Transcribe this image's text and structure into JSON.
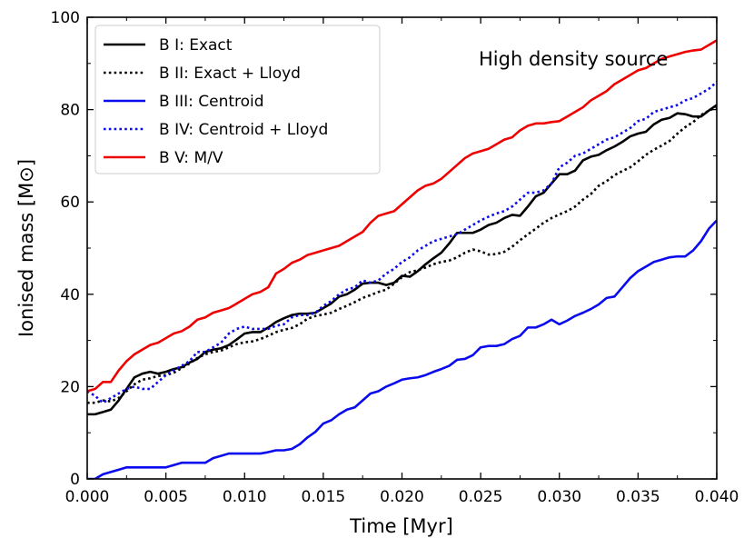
{
  "chart_data": {
    "type": "line",
    "title": "",
    "annotation": "High density source",
    "xlabel": "Time [Myr]",
    "ylabel": "Ionised mass [M⊙]",
    "xlim": [
      0.0,
      0.04
    ],
    "ylim": [
      0,
      100
    ],
    "x_ticks": [
      0.0,
      0.005,
      0.01,
      0.015,
      0.02,
      0.025,
      0.03,
      0.035,
      0.04
    ],
    "x_tick_labels": [
      "0.000",
      "0.005",
      "0.010",
      "0.015",
      "0.020",
      "0.025",
      "0.030",
      "0.035",
      "0.040"
    ],
    "y_ticks": [
      0,
      20,
      40,
      60,
      80,
      100
    ],
    "y_tick_labels": [
      "0",
      "20",
      "40",
      "60",
      "80",
      "100"
    ],
    "legend_position": "top-left",
    "grid": false,
    "series": [
      {
        "name": "B I: Exact",
        "color": "#000000",
        "style": "solid",
        "x": [
          0.0,
          0.0005,
          0.001,
          0.0015,
          0.002,
          0.0025,
          0.003,
          0.0035,
          0.004,
          0.0045,
          0.005,
          0.0055,
          0.006,
          0.0065,
          0.007,
          0.0075,
          0.008,
          0.0085,
          0.009,
          0.0095,
          0.01,
          0.0105,
          0.011,
          0.0115,
          0.012,
          0.0125,
          0.013,
          0.0135,
          0.014,
          0.0145,
          0.015,
          0.0155,
          0.016,
          0.0165,
          0.017,
          0.0175,
          0.018,
          0.0185,
          0.019,
          0.0195,
          0.02,
          0.0205,
          0.021,
          0.0215,
          0.022,
          0.0225,
          0.023,
          0.0235,
          0.024,
          0.0245,
          0.025,
          0.0255,
          0.026,
          0.0265,
          0.027,
          0.0275,
          0.028,
          0.0285,
          0.029,
          0.0295,
          0.03,
          0.0305,
          0.031,
          0.0315,
          0.032,
          0.0325,
          0.033,
          0.0335,
          0.034,
          0.0345,
          0.035,
          0.0355,
          0.036,
          0.0365,
          0.037,
          0.0375,
          0.038,
          0.0385,
          0.039,
          0.0395,
          0.04
        ],
        "values": [
          14.0,
          14.0,
          14.5,
          15.0,
          17.0,
          19.5,
          22.0,
          22.8,
          23.2,
          22.8,
          23.2,
          23.8,
          24.2,
          25.2,
          26.0,
          27.5,
          28.0,
          28.3,
          29.0,
          30.2,
          31.5,
          31.8,
          31.8,
          32.8,
          34.0,
          34.8,
          35.5,
          35.8,
          35.8,
          36.0,
          37.0,
          38.0,
          39.5,
          40.0,
          41.0,
          42.3,
          42.5,
          42.5,
          42.0,
          42.5,
          44.0,
          43.8,
          45.0,
          46.5,
          47.8,
          49.0,
          51.0,
          53.3,
          53.3,
          53.3,
          54.0,
          55.0,
          55.5,
          56.5,
          57.2,
          57.0,
          59.0,
          61.2,
          62.0,
          64.0,
          66.0,
          66.0,
          66.8,
          69.0,
          69.8,
          70.2,
          71.2,
          72.0,
          73.0,
          74.2,
          74.8,
          75.2,
          76.8,
          77.8,
          78.2,
          79.2,
          79.0,
          78.5,
          78.5,
          79.8,
          81.0
        ]
      },
      {
        "name": "B II: Exact + Lloyd",
        "color": "#000000",
        "style": "dotted",
        "x": [
          0.0,
          0.0005,
          0.001,
          0.0015,
          0.002,
          0.0025,
          0.003,
          0.0035,
          0.004,
          0.0045,
          0.005,
          0.0055,
          0.006,
          0.0065,
          0.007,
          0.0075,
          0.008,
          0.0085,
          0.009,
          0.0095,
          0.01,
          0.0105,
          0.011,
          0.0115,
          0.012,
          0.0125,
          0.013,
          0.0135,
          0.014,
          0.0145,
          0.015,
          0.0155,
          0.016,
          0.0165,
          0.017,
          0.0175,
          0.018,
          0.0185,
          0.019,
          0.0195,
          0.02,
          0.0205,
          0.021,
          0.0215,
          0.022,
          0.0225,
          0.023,
          0.0235,
          0.024,
          0.0245,
          0.025,
          0.0255,
          0.026,
          0.0265,
          0.027,
          0.0275,
          0.028,
          0.0285,
          0.029,
          0.0295,
          0.03,
          0.0305,
          0.031,
          0.0315,
          0.032,
          0.0325,
          0.033,
          0.0335,
          0.034,
          0.0345,
          0.035,
          0.0355,
          0.036,
          0.0365,
          0.037,
          0.0375,
          0.038,
          0.0385,
          0.039,
          0.0395,
          0.04
        ],
        "values": [
          16.5,
          16.5,
          17.0,
          16.8,
          17.5,
          19.0,
          20.5,
          21.5,
          21.8,
          22.3,
          22.5,
          23.0,
          24.0,
          25.0,
          26.2,
          27.0,
          27.5,
          27.8,
          28.5,
          29.2,
          29.6,
          29.8,
          30.3,
          31.0,
          31.8,
          32.3,
          32.7,
          33.5,
          34.7,
          35.3,
          35.6,
          36.0,
          36.8,
          37.5,
          38.3,
          39.2,
          39.8,
          40.5,
          41.0,
          42.3,
          43.7,
          44.8,
          45.2,
          45.8,
          46.5,
          47.0,
          47.3,
          48.0,
          49.0,
          49.7,
          49.3,
          48.6,
          48.7,
          49.2,
          50.3,
          51.7,
          53.0,
          54.2,
          55.5,
          56.5,
          57.3,
          58.0,
          59.0,
          60.5,
          61.7,
          63.5,
          64.5,
          65.8,
          66.7,
          67.5,
          68.8,
          70.2,
          71.3,
          72.2,
          73.2,
          74.8,
          76.2,
          77.3,
          78.8,
          79.8,
          80.5
        ]
      },
      {
        "name": "B III: Centroid",
        "color": "#0a0aee",
        "style": "solid",
        "x": [
          0.0,
          0.0005,
          0.001,
          0.0015,
          0.002,
          0.0025,
          0.003,
          0.0035,
          0.004,
          0.0045,
          0.005,
          0.0055,
          0.006,
          0.0065,
          0.007,
          0.0075,
          0.008,
          0.0085,
          0.009,
          0.0095,
          0.01,
          0.0105,
          0.011,
          0.0115,
          0.012,
          0.0125,
          0.013,
          0.0135,
          0.014,
          0.0145,
          0.015,
          0.0155,
          0.016,
          0.0165,
          0.017,
          0.0175,
          0.018,
          0.0185,
          0.019,
          0.0195,
          0.02,
          0.0205,
          0.021,
          0.0215,
          0.022,
          0.0225,
          0.023,
          0.0235,
          0.024,
          0.0245,
          0.025,
          0.0255,
          0.026,
          0.0265,
          0.027,
          0.0275,
          0.028,
          0.0285,
          0.029,
          0.0295,
          0.03,
          0.0305,
          0.031,
          0.0315,
          0.032,
          0.0325,
          0.033,
          0.0335,
          0.034,
          0.0345,
          0.035,
          0.0355,
          0.036,
          0.0365,
          0.037,
          0.0375,
          0.038,
          0.0385,
          0.039,
          0.0395,
          0.04
        ],
        "values": [
          0.0,
          0.0,
          1.0,
          1.5,
          2.0,
          2.5,
          2.5,
          2.5,
          2.5,
          2.5,
          2.5,
          3.0,
          3.5,
          3.5,
          3.5,
          3.5,
          4.5,
          5.0,
          5.5,
          5.5,
          5.5,
          5.5,
          5.5,
          5.8,
          6.2,
          6.2,
          6.5,
          7.5,
          9.0,
          10.2,
          12.0,
          12.7,
          14.0,
          15.0,
          15.5,
          17.0,
          18.5,
          19.0,
          20.0,
          20.7,
          21.5,
          21.8,
          22.0,
          22.5,
          23.2,
          23.8,
          24.5,
          25.8,
          26.0,
          26.8,
          28.5,
          28.8,
          28.8,
          29.2,
          30.3,
          31.0,
          32.8,
          32.8,
          33.5,
          34.5,
          33.5,
          34.3,
          35.3,
          36.0,
          36.8,
          37.8,
          39.2,
          39.5,
          41.5,
          43.5,
          45.0,
          46.0,
          47.0,
          47.5,
          48.0,
          48.2,
          48.2,
          49.5,
          51.5,
          54.2,
          56.0
        ]
      },
      {
        "name": "B IV: Centroid + Lloyd",
        "color": "#0a0aee",
        "style": "dotted",
        "x": [
          0.0,
          0.0005,
          0.001,
          0.0015,
          0.002,
          0.0025,
          0.003,
          0.0035,
          0.004,
          0.0045,
          0.005,
          0.0055,
          0.006,
          0.0065,
          0.007,
          0.0075,
          0.008,
          0.0085,
          0.009,
          0.0095,
          0.01,
          0.0105,
          0.011,
          0.0115,
          0.012,
          0.0125,
          0.013,
          0.0135,
          0.014,
          0.0145,
          0.015,
          0.0155,
          0.016,
          0.0165,
          0.017,
          0.0175,
          0.018,
          0.0185,
          0.019,
          0.0195,
          0.02,
          0.0205,
          0.021,
          0.0215,
          0.022,
          0.0225,
          0.023,
          0.0235,
          0.024,
          0.0245,
          0.025,
          0.0255,
          0.026,
          0.0265,
          0.027,
          0.0275,
          0.028,
          0.0285,
          0.029,
          0.0295,
          0.03,
          0.0305,
          0.031,
          0.0315,
          0.032,
          0.0325,
          0.033,
          0.0335,
          0.034,
          0.0345,
          0.035,
          0.0355,
          0.036,
          0.0365,
          0.037,
          0.0375,
          0.038,
          0.0385,
          0.039,
          0.0395,
          0.04
        ],
        "values": [
          19.0,
          18.0,
          16.5,
          17.5,
          18.5,
          19.5,
          20.0,
          19.5,
          19.5,
          21.0,
          22.5,
          23.5,
          24.5,
          25.5,
          27.5,
          27.5,
          28.5,
          29.5,
          31.5,
          32.5,
          33.0,
          32.5,
          32.5,
          32.5,
          33.2,
          33.5,
          35.0,
          35.5,
          35.5,
          36.0,
          37.5,
          38.5,
          40.0,
          41.0,
          41.5,
          43.0,
          42.5,
          43.0,
          44.5,
          45.5,
          47.0,
          48.0,
          49.5,
          50.5,
          51.5,
          52.0,
          52.5,
          53.0,
          54.0,
          55.0,
          56.0,
          56.8,
          57.5,
          58.0,
          59.0,
          60.5,
          62.0,
          62.0,
          62.5,
          64.0,
          67.5,
          68.5,
          70.0,
          70.5,
          71.5,
          72.5,
          73.5,
          74.0,
          75.0,
          76.0,
          77.5,
          78.0,
          79.5,
          80.0,
          80.5,
          81.0,
          82.0,
          82.5,
          83.5,
          84.5,
          86.0
        ]
      },
      {
        "name": "B V: M/V",
        "color": "#ee0000",
        "style": "solid",
        "x": [
          0.0,
          0.0005,
          0.001,
          0.0015,
          0.002,
          0.0025,
          0.003,
          0.0035,
          0.004,
          0.0045,
          0.005,
          0.0055,
          0.006,
          0.0065,
          0.007,
          0.0075,
          0.008,
          0.0085,
          0.009,
          0.0095,
          0.01,
          0.0105,
          0.011,
          0.0115,
          0.012,
          0.0125,
          0.013,
          0.0135,
          0.014,
          0.0145,
          0.015,
          0.0155,
          0.016,
          0.0165,
          0.017,
          0.0175,
          0.018,
          0.0185,
          0.019,
          0.0195,
          0.02,
          0.0205,
          0.021,
          0.0215,
          0.022,
          0.0225,
          0.023,
          0.0235,
          0.024,
          0.0245,
          0.025,
          0.0255,
          0.026,
          0.0265,
          0.027,
          0.0275,
          0.028,
          0.0285,
          0.029,
          0.0295,
          0.03,
          0.0305,
          0.031,
          0.0315,
          0.032,
          0.0325,
          0.033,
          0.0335,
          0.034,
          0.0345,
          0.035,
          0.0355,
          0.036,
          0.0365,
          0.037,
          0.0375,
          0.038,
          0.0385,
          0.039,
          0.0395,
          0.04
        ],
        "values": [
          19.0,
          19.5,
          21.0,
          21.0,
          23.5,
          25.5,
          27.0,
          28.0,
          29.0,
          29.5,
          30.5,
          31.5,
          32.0,
          33.0,
          34.5,
          35.0,
          36.0,
          36.5,
          37.0,
          38.0,
          39.0,
          40.0,
          40.5,
          41.5,
          44.5,
          45.5,
          46.8,
          47.5,
          48.5,
          49.0,
          49.5,
          50.0,
          50.5,
          51.5,
          52.5,
          53.5,
          55.5,
          57.0,
          57.5,
          58.0,
          59.5,
          61.0,
          62.5,
          63.5,
          64.0,
          65.0,
          66.5,
          68.0,
          69.5,
          70.5,
          71.0,
          71.5,
          72.5,
          73.5,
          74.0,
          75.5,
          76.5,
          77.0,
          77.0,
          77.3,
          77.5,
          78.5,
          79.5,
          80.5,
          82.0,
          83.0,
          84.0,
          85.5,
          86.5,
          87.5,
          88.5,
          89.0,
          90.0,
          91.0,
          91.5,
          92.0,
          92.5,
          92.8,
          93.0,
          94.0,
          95.0
        ]
      }
    ]
  }
}
